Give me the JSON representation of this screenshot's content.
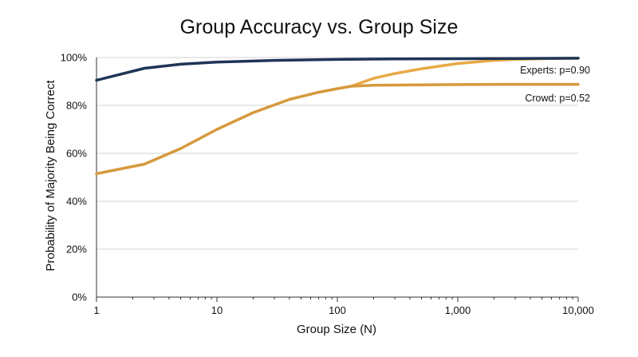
{
  "chart_data": {
    "type": "line",
    "title": "Group Accuracy vs. Group Size",
    "xlabel": "Group Size (N)",
    "ylabel": "Probability of Majority Being Correct",
    "x_scale": "log",
    "xlim": [
      1,
      10000
    ],
    "ylim": [
      0,
      100
    ],
    "x_ticks": [
      {
        "value": 1,
        "label": "1"
      },
      {
        "value": 10,
        "label": "10"
      },
      {
        "value": 100,
        "label": "100"
      },
      {
        "value": 1000,
        "label": "1,000"
      },
      {
        "value": 10000,
        "label": "10,000"
      }
    ],
    "y_ticks": [
      {
        "value": 0,
        "label": "0%"
      },
      {
        "value": 20,
        "label": "20%"
      },
      {
        "value": 40,
        "label": "40%"
      },
      {
        "value": 60,
        "label": "60%"
      },
      {
        "value": 80,
        "label": "80%"
      },
      {
        "value": 100,
        "label": "100%"
      }
    ],
    "grid": true,
    "series": [
      {
        "name": "Experts: p=0.90",
        "color": "#1f3557",
        "x": [
          1,
          2.5,
          5,
          10,
          30,
          100,
          300,
          1000,
          3000,
          10000
        ],
        "y": [
          90.5,
          95.5,
          97.2,
          98.1,
          98.8,
          99.2,
          99.4,
          99.5,
          99.6,
          99.7
        ]
      },
      {
        "name": "Crowd: p=0.52",
        "color": "#d6993c",
        "x": [
          1,
          2.5,
          5,
          10,
          20,
          40,
          70,
          100,
          130,
          200,
          500,
          1000,
          3000,
          10000
        ],
        "y": [
          51.5,
          55.5,
          62,
          70,
          77,
          82.5,
          85.5,
          87,
          88,
          88.4,
          88.6,
          88.7,
          88.8,
          88.8
        ]
      },
      {
        "color": "#e8a945",
        "x": [
          130,
          200,
          300,
          500,
          1000,
          2000,
          3000,
          5000,
          10000
        ],
        "y": [
          88,
          91.3,
          93.3,
          95.3,
          97.5,
          98.8,
          99.2,
          99.5,
          99.7
        ]
      }
    ]
  }
}
